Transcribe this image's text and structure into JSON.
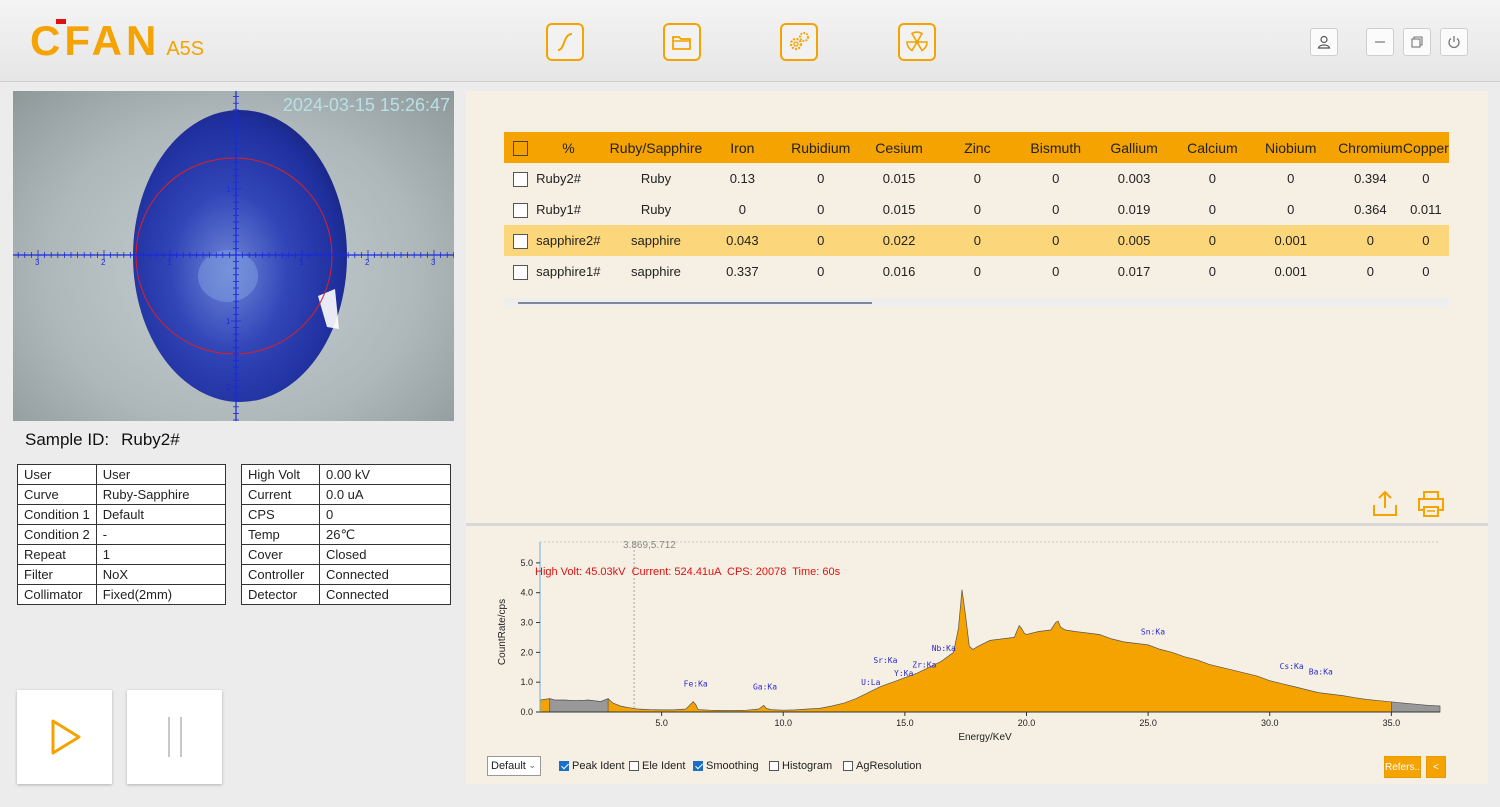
{
  "app": {
    "brand": "CFAN",
    "model": "A5S"
  },
  "toolbar": {
    "icons": [
      "curve-icon",
      "folder-icon",
      "gears-icon",
      "radiation-icon"
    ],
    "window": [
      "user-icon",
      "minimize-icon",
      "restore-icon",
      "power-icon"
    ]
  },
  "camera": {
    "timestamp": "2024-03-15 15:26:47",
    "ticks_h": [
      "3",
      "2",
      "1",
      "1",
      "2",
      "3"
    ],
    "ticks_v": [
      "2",
      "1",
      "1",
      "2"
    ]
  },
  "sample": {
    "label": "Sample ID:",
    "value": "Ruby2#"
  },
  "info_left": [
    [
      "User",
      "User"
    ],
    [
      "Curve",
      "Ruby-Sapphire"
    ],
    [
      "Condition 1",
      "Default"
    ],
    [
      "Condition 2",
      "-"
    ],
    [
      "Repeat",
      "1"
    ],
    [
      "Filter",
      "NoX"
    ],
    [
      "Collimator",
      "Fixed(2mm)"
    ]
  ],
  "info_right": [
    [
      "High Volt",
      "0.00 kV"
    ],
    [
      "Current",
      "0.0 uA"
    ],
    [
      "CPS",
      "0"
    ],
    [
      "Temp",
      "26℃"
    ],
    [
      "Cover",
      "Closed"
    ],
    [
      "Controller",
      "Connected"
    ],
    [
      "Detector",
      "Connected"
    ]
  ],
  "results": {
    "headers": [
      "%",
      "Ruby/Sapphire",
      "Iron",
      "Rubidium",
      "Cesium",
      "Zinc",
      "Bismuth",
      "Gallium",
      "Calcium",
      "Niobium",
      "Chromium",
      "Copper"
    ],
    "rows": [
      [
        "Ruby2#",
        "Ruby",
        "0.13",
        "0",
        "0.015",
        "0",
        "0",
        "0.003",
        "0",
        "0",
        "0.394",
        "0"
      ],
      [
        "Ruby1#",
        "Ruby",
        "0",
        "0",
        "0.015",
        "0",
        "0",
        "0.019",
        "0",
        "0",
        "0.364",
        "0.011"
      ],
      [
        "sapphire2#",
        "sapphire",
        "0.043",
        "0",
        "0.022",
        "0",
        "0",
        "0.005",
        "0",
        "0.001",
        "0",
        "0"
      ],
      [
        "sapphire1#",
        "sapphire",
        "0.337",
        "0",
        "0.016",
        "0",
        "0",
        "0.017",
        "0",
        "0.001",
        "0",
        "0"
      ]
    ],
    "selected_row": 2
  },
  "actions": [
    "export-icon",
    "print-icon"
  ],
  "spectrum": {
    "cursor_readout": "3.869,5.712",
    "status": "High Volt: 45.03kV  Current: 524.41uA  CPS: 20078  Time: 60s",
    "colors": {
      "fill": "#f5a300",
      "tail": "#999999",
      "status": "#e01010",
      "peak_label": "#2a2ad0"
    }
  },
  "chart_data": {
    "type": "area",
    "xlabel": "Energy/KeV",
    "ylabel": "CountRate/cps",
    "xlim": [
      0,
      37
    ],
    "ylim": [
      0,
      5.7
    ],
    "xticks": [
      "5.0",
      "10.0",
      "15.0",
      "20.0",
      "25.0",
      "30.0",
      "35.0"
    ],
    "yticks": [
      "0.0",
      "1.0",
      "2.0",
      "3.0",
      "4.0",
      "5.0"
    ],
    "x": [
      0.0,
      0.4,
      0.6,
      1.0,
      1.5,
      2.0,
      2.5,
      2.8,
      3.0,
      3.3,
      3.6,
      4.0,
      4.5,
      5.0,
      5.5,
      6.0,
      6.3,
      6.4,
      6.5,
      7.0,
      7.5,
      8.0,
      8.5,
      9.0,
      9.2,
      9.3,
      9.5,
      10.0,
      10.5,
      11.0,
      11.5,
      12.0,
      12.5,
      13.0,
      13.5,
      14.0,
      14.5,
      15.0,
      15.5,
      16.0,
      16.5,
      17.0,
      17.2,
      17.35,
      17.5,
      17.65,
      17.8,
      18.0,
      18.5,
      19.0,
      19.5,
      19.7,
      19.8,
      19.9,
      20.0,
      20.5,
      21.0,
      21.2,
      21.3,
      21.4,
      21.6,
      22.0,
      22.5,
      23.0,
      23.5,
      24.0,
      24.5,
      25.0,
      25.5,
      26.0,
      26.5,
      27.0,
      27.5,
      28.0,
      28.5,
      29.0,
      29.5,
      30.0,
      30.5,
      31.0,
      31.5,
      32.0,
      32.5,
      33.0,
      33.5,
      34.0,
      34.5,
      35.0,
      35.5,
      36.0,
      36.5,
      37.0
    ],
    "y": [
      0.4,
      0.45,
      0.4,
      0.4,
      0.38,
      0.4,
      0.35,
      0.45,
      0.3,
      0.2,
      0.15,
      0.1,
      0.08,
      0.07,
      0.07,
      0.1,
      0.35,
      0.25,
      0.08,
      0.06,
      0.05,
      0.05,
      0.06,
      0.1,
      0.22,
      0.12,
      0.08,
      0.06,
      0.07,
      0.1,
      0.12,
      0.2,
      0.3,
      0.45,
      0.65,
      0.85,
      1.0,
      1.15,
      1.3,
      1.5,
      1.7,
      2.0,
      2.8,
      4.1,
      3.2,
      2.2,
      2.1,
      2.2,
      2.4,
      2.45,
      2.5,
      2.9,
      2.8,
      2.65,
      2.6,
      2.7,
      2.75,
      3.0,
      3.05,
      2.85,
      2.75,
      2.7,
      2.65,
      2.6,
      2.45,
      2.35,
      2.3,
      2.25,
      2.1,
      2.0,
      1.85,
      1.75,
      1.6,
      1.5,
      1.4,
      1.3,
      1.2,
      1.05,
      0.95,
      0.85,
      0.75,
      0.65,
      0.6,
      0.55,
      0.48,
      0.42,
      0.38,
      0.34,
      0.3,
      0.26,
      0.22,
      0.2
    ],
    "tail_from": 35.0,
    "peak_labels": [
      {
        "text": "Fe:Ka",
        "x": 6.4,
        "y": 0.85
      },
      {
        "text": "Ga:Ka",
        "x": 9.25,
        "y": 0.75
      },
      {
        "text": "U:La",
        "x": 13.6,
        "y": 0.9
      },
      {
        "text": "Sr:Ka",
        "x": 14.2,
        "y": 1.65
      },
      {
        "text": "Y:Ka",
        "x": 14.95,
        "y": 1.2
      },
      {
        "text": "Zr:Ka",
        "x": 15.8,
        "y": 1.5
      },
      {
        "text": "Nb:Ka",
        "x": 16.6,
        "y": 2.05
      },
      {
        "text": "Sn:Ka",
        "x": 25.2,
        "y": 2.6
      },
      {
        "text": "Cs:Ka",
        "x": 30.9,
        "y": 1.45
      },
      {
        "text": "Ba:Ka",
        "x": 32.1,
        "y": 1.25
      }
    ]
  },
  "controls": {
    "preset": "Default",
    "checkboxes": [
      {
        "label": "Peak Ident",
        "checked": true
      },
      {
        "label": "Ele Ident",
        "checked": false
      },
      {
        "label": "Smoothing",
        "checked": true
      },
      {
        "label": "Histogram",
        "checked": false
      },
      {
        "label": "AgResolution",
        "checked": false
      }
    ],
    "refers_label": "Refers..",
    "collapse_label": "<"
  }
}
